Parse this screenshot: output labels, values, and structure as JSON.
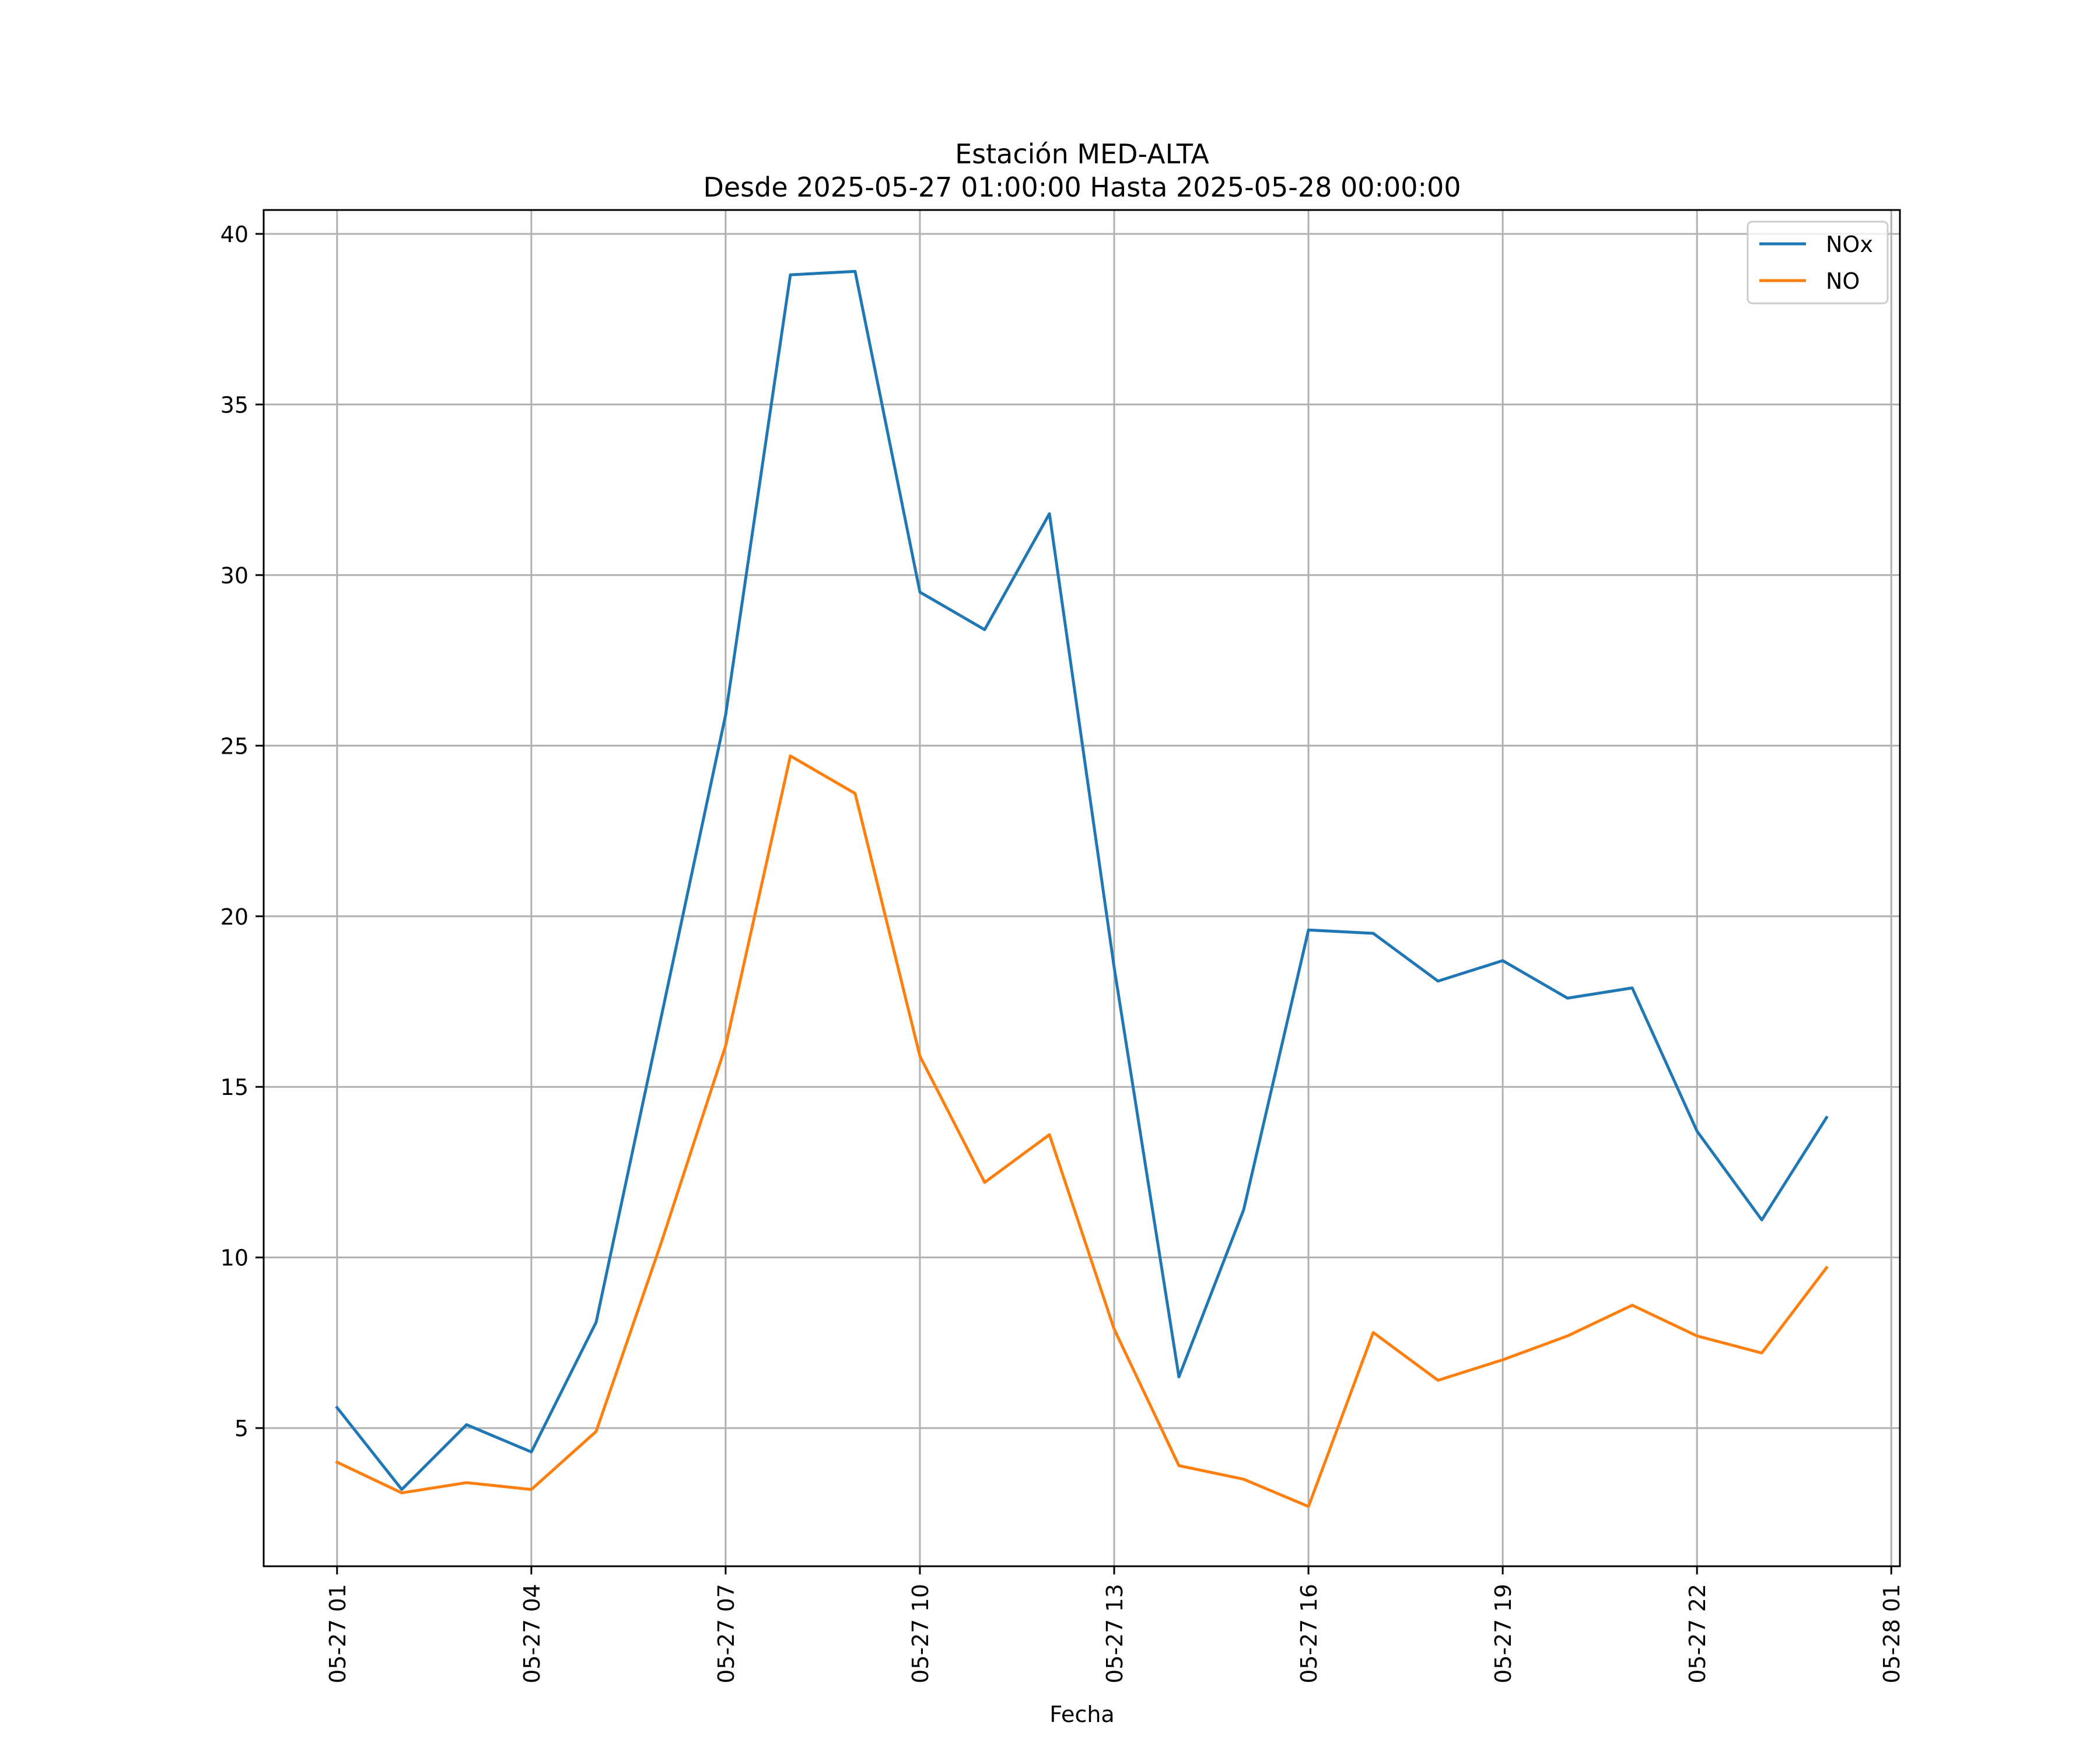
{
  "chart_data": {
    "type": "line",
    "title": "Estación MED-ALTA",
    "subtitle": "Desde 2025-05-27 01:00:00 Hasta 2025-05-28 00:00:00",
    "xlabel": "Fecha",
    "ylabel": "",
    "x": [
      "2025-05-27 01:00",
      "2025-05-27 02:00",
      "2025-05-27 03:00",
      "2025-05-27 04:00",
      "2025-05-27 05:00",
      "2025-05-27 06:00",
      "2025-05-27 07:00",
      "2025-05-27 08:00",
      "2025-05-27 09:00",
      "2025-05-27 10:00",
      "2025-05-27 11:00",
      "2025-05-27 12:00",
      "2025-05-27 13:00",
      "2025-05-27 14:00",
      "2025-05-27 15:00",
      "2025-05-27 16:00",
      "2025-05-27 17:00",
      "2025-05-27 18:00",
      "2025-05-27 19:00",
      "2025-05-27 20:00",
      "2025-05-27 21:00",
      "2025-05-27 22:00",
      "2025-05-27 23:00",
      "2025-05-28 00:00"
    ],
    "series": [
      {
        "name": "NOx",
        "color": "#1f77b4",
        "values": [
          5.6,
          3.2,
          5.1,
          4.3,
          8.1,
          17.0,
          25.9,
          38.8,
          38.9,
          29.5,
          28.4,
          31.8,
          18.5,
          6.5,
          11.4,
          19.6,
          19.5,
          18.1,
          18.7,
          17.6,
          17.9,
          13.7,
          11.1,
          14.1
        ]
      },
      {
        "name": "NO",
        "color": "#ff7f0e",
        "values": [
          4.0,
          3.1,
          3.4,
          3.2,
          4.9,
          10.4,
          16.2,
          24.7,
          23.6,
          15.9,
          12.2,
          13.6,
          7.9,
          3.9,
          3.5,
          2.7,
          7.8,
          6.4,
          7.0,
          7.7,
          8.6,
          7.7,
          7.2,
          9.7
        ]
      }
    ],
    "x_ticks": [
      {
        "value": "2025-05-27 01:00",
        "label": "05-27 01"
      },
      {
        "value": "2025-05-27 04:00",
        "label": "05-27 04"
      },
      {
        "value": "2025-05-27 07:00",
        "label": "05-27 07"
      },
      {
        "value": "2025-05-27 10:00",
        "label": "05-27 10"
      },
      {
        "value": "2025-05-27 13:00",
        "label": "05-27 13"
      },
      {
        "value": "2025-05-27 16:00",
        "label": "05-27 16"
      },
      {
        "value": "2025-05-27 19:00",
        "label": "05-27 19"
      },
      {
        "value": "2025-05-27 22:00",
        "label": "05-27 22"
      },
      {
        "value": "2025-05-28 01:00",
        "label": "05-28 01"
      }
    ],
    "y_ticks": [
      5,
      10,
      15,
      20,
      25,
      30,
      35,
      40
    ],
    "xlim": [
      "2025-05-26 23:52",
      "2025-05-28 01:08"
    ],
    "ylim": [
      0.95,
      40.7
    ],
    "grid": true,
    "legend_position": "top-right"
  }
}
